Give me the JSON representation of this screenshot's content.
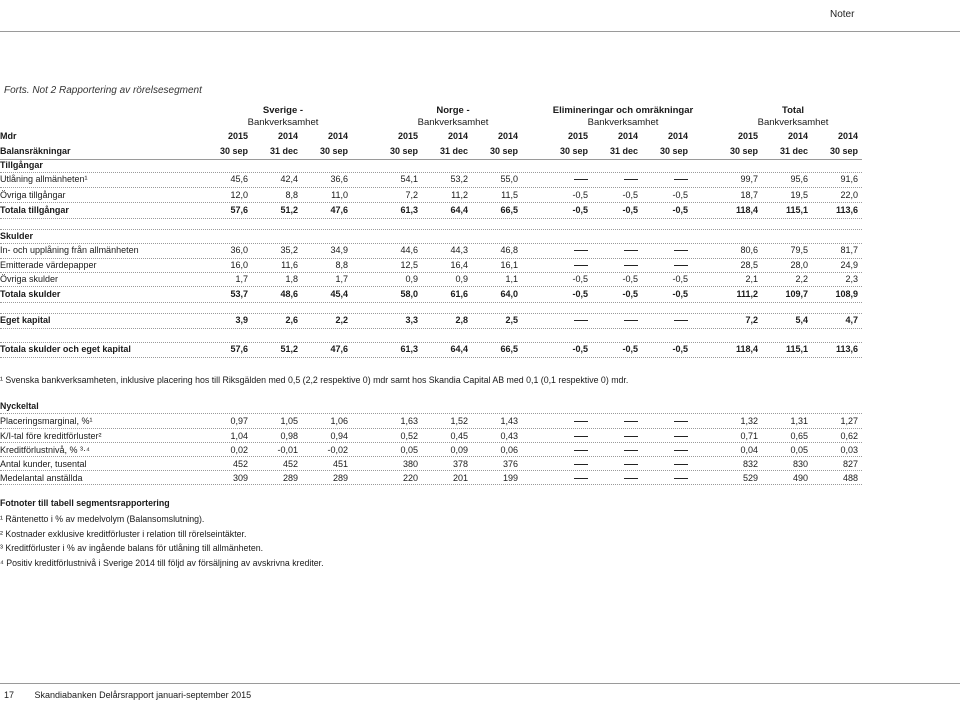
{
  "header": {
    "section": "Noter"
  },
  "title": "Forts. Not 2 Rapportering av rörelsesegment",
  "groups": [
    {
      "name": "Sverige -",
      "sub": "Bankverksamhet"
    },
    {
      "name": "Norge -",
      "sub": "Bankverksamhet"
    },
    {
      "name": "Elimineringar och omräkningar",
      "sub": "Bankverksamhet"
    },
    {
      "name": "Total",
      "sub": "Bankverksamhet"
    }
  ],
  "year_label": "Mdr",
  "date_label": "Balansräkningar",
  "years": [
    "2015",
    "2014",
    "2014",
    "2015",
    "2014",
    "2014",
    "2015",
    "2014",
    "2014",
    "2015",
    "2014",
    "2014"
  ],
  "dates": [
    "30 sep",
    "31 dec",
    "30 sep",
    "30 sep",
    "31 dec",
    "30 sep",
    "30 sep",
    "31 dec",
    "30 sep",
    "30 sep",
    "31 dec",
    "30 sep"
  ],
  "rows": [
    {
      "label": "Tillgångar",
      "bold": true,
      "values": []
    },
    {
      "label": "Utlåning allmänheten¹",
      "values": [
        "45,6",
        "42,4",
        "36,6",
        "54,1",
        "53,2",
        "55,0",
        "—",
        "—",
        "—",
        "99,7",
        "95,6",
        "91,6"
      ]
    },
    {
      "label": "Övriga tillgångar",
      "values": [
        "12,0",
        "8,8",
        "11,0",
        "7,2",
        "11,2",
        "11,5",
        "-0,5",
        "-0,5",
        "-0,5",
        "18,7",
        "19,5",
        "22,0"
      ]
    },
    {
      "label": "Totala tillgångar",
      "bold": true,
      "values": [
        "57,6",
        "51,2",
        "47,6",
        "61,3",
        "64,4",
        "66,5",
        "-0,5",
        "-0,5",
        "-0,5",
        "118,4",
        "115,1",
        "113,6"
      ]
    },
    {
      "label": "Skulder",
      "bold": true,
      "values": []
    },
    {
      "label": "In- och upplåning från allmänheten",
      "values": [
        "36,0",
        "35,2",
        "34,9",
        "44,6",
        "44,3",
        "46,8",
        "—",
        "—",
        "—",
        "80,6",
        "79,5",
        "81,7"
      ]
    },
    {
      "label": "Emitterade värdepapper",
      "values": [
        "16,0",
        "11,6",
        "8,8",
        "12,5",
        "16,4",
        "16,1",
        "—",
        "—",
        "—",
        "28,5",
        "28,0",
        "24,9"
      ]
    },
    {
      "label": "Övriga skulder",
      "values": [
        "1,7",
        "1,8",
        "1,7",
        "0,9",
        "0,9",
        "1,1",
        "-0,5",
        "-0,5",
        "-0,5",
        "2,1",
        "2,2",
        "2,3"
      ]
    },
    {
      "label": "Totala skulder",
      "bold": true,
      "values": [
        "53,7",
        "48,6",
        "45,4",
        "58,0",
        "61,6",
        "64,0",
        "-0,5",
        "-0,5",
        "-0,5",
        "111,2",
        "109,7",
        "108,9"
      ]
    },
    {
      "label": "Eget kapital",
      "bold": true,
      "values": [
        "3,9",
        "2,6",
        "2,2",
        "3,3",
        "2,8",
        "2,5",
        "—",
        "—",
        "—",
        "7,2",
        "5,4",
        "4,7"
      ]
    },
    {
      "label": "Totala skulder och eget kapital",
      "bold": true,
      "values": [
        "57,6",
        "51,2",
        "47,6",
        "61,3",
        "64,4",
        "66,5",
        "-0,5",
        "-0,5",
        "-0,5",
        "118,4",
        "115,1",
        "113,6"
      ]
    }
  ],
  "footnote_inline": "¹ Svenska bankverksamheten, inklusive placering hos till Riksgälden med 0,5 (2,2 respektive 0) mdr samt hos Skandia Capital AB med 0,1 (0,1 respektive 0) mdr.",
  "kpi_title": "Nyckeltal",
  "kpis": [
    {
      "label": "Placeringsmarginal, %¹",
      "values": [
        "0,97",
        "1,05",
        "1,06",
        "1,63",
        "1,52",
        "1,43",
        "—",
        "—",
        "—",
        "1,32",
        "1,31",
        "1,27"
      ]
    },
    {
      "label": "K/I-tal före kreditförluster²",
      "values": [
        "1,04",
        "0,98",
        "0,94",
        "0,52",
        "0,45",
        "0,43",
        "—",
        "—",
        "—",
        "0,71",
        "0,65",
        "0,62"
      ]
    },
    {
      "label": "Kreditförlustnivå, % ³·⁴",
      "values": [
        "0,02",
        "-0,01",
        "-0,02",
        "0,05",
        "0,09",
        "0,06",
        "—",
        "—",
        "—",
        "0,04",
        "0,05",
        "0,03"
      ]
    },
    {
      "label": "Antal kunder, tusental",
      "values": [
        "452",
        "452",
        "451",
        "380",
        "378",
        "376",
        "—",
        "—",
        "—",
        "832",
        "830",
        "827"
      ]
    },
    {
      "label": "Medelantal anställda",
      "values": [
        "309",
        "289",
        "289",
        "220",
        "201",
        "199",
        "—",
        "—",
        "—",
        "529",
        "490",
        "488"
      ]
    }
  ],
  "fn_title": "Fotnoter till tabell segmentsrapportering",
  "footnotes": [
    "¹ Räntenetto i % av medelvolym (Balansomslutning).",
    "² Kostnader exklusive kreditförluster i relation till rörelseintäkter.",
    "³ Kreditförluster i % av ingående balans för utlåning till allmänheten.",
    "⁴ Positiv kreditförlustnivå i Sverige 2014 till följd av försäljning av avskrivna krediter."
  ],
  "footer": {
    "page": "17",
    "text": "Skandiabanken Delårsrapport januari-september 2015"
  }
}
